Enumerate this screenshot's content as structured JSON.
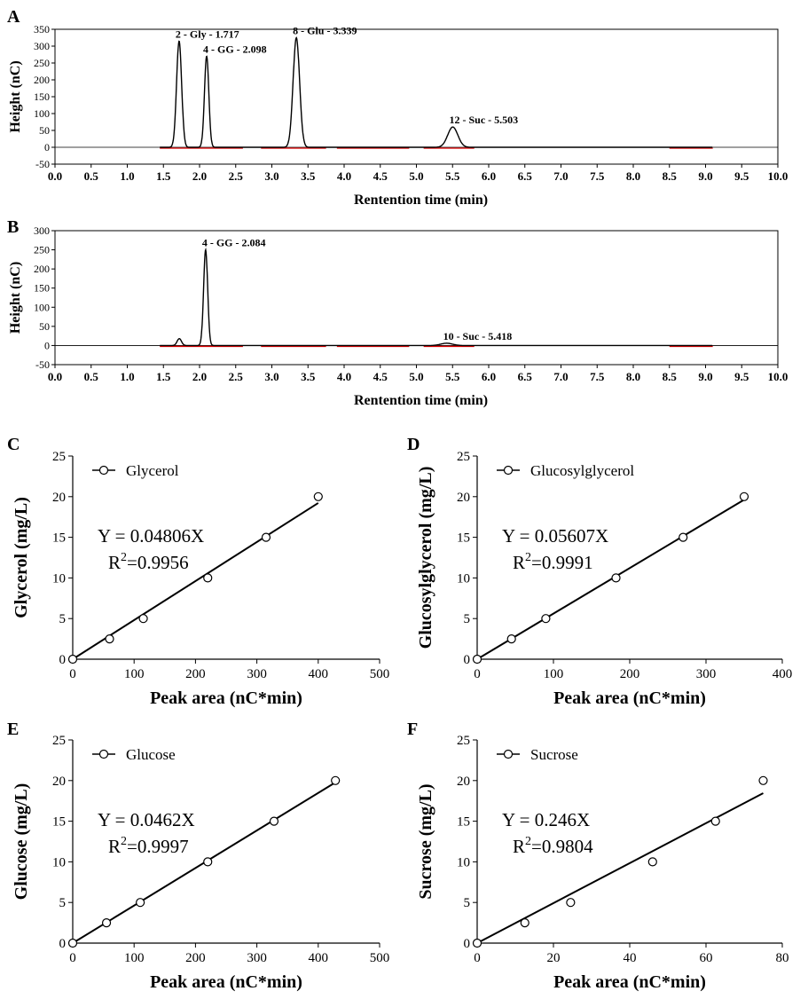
{
  "chart_data": [
    {
      "panel": "A",
      "type": "line",
      "xlabel": "Rentention time (min)",
      "ylabel": "Height (nC)",
      "xlim": [
        0,
        10
      ],
      "ylim": [
        -50,
        350
      ],
      "xticks": [
        "0.0",
        "0.5",
        "1.0",
        "1.5",
        "2.0",
        "2.5",
        "3.0",
        "3.5",
        "4.0",
        "4.5",
        "5.0",
        "5.5",
        "6.0",
        "6.5",
        "7.0",
        "7.5",
        "8.0",
        "8.5",
        "9.0",
        "9.5",
        "10.0"
      ],
      "yticks": [
        "-50",
        "0",
        "50",
        "100",
        "150",
        "200",
        "250",
        "300",
        "350"
      ],
      "peaks": [
        {
          "label": "2 - Gly - 1.717",
          "rt": 1.717,
          "height": 315,
          "sigma": 0.035
        },
        {
          "label": "4 - GG - 2.098",
          "rt": 2.098,
          "height": 270,
          "sigma": 0.03
        },
        {
          "label": "8 - Glu - 3.339",
          "rt": 3.339,
          "height": 325,
          "sigma": 0.045
        },
        {
          "label": "12 - Suc - 5.503",
          "rt": 5.503,
          "height": 60,
          "sigma": 0.07
        }
      ]
    },
    {
      "panel": "B",
      "type": "line",
      "xlabel": "Rentention time (min)",
      "ylabel": "Height (nC)",
      "xlim": [
        0,
        10
      ],
      "ylim": [
        -50,
        300
      ],
      "xticks": [
        "0.0",
        "0.5",
        "1.0",
        "1.5",
        "2.0",
        "2.5",
        "3.0",
        "3.5",
        "4.0",
        "4.5",
        "5.0",
        "5.5",
        "6.0",
        "6.5",
        "7.0",
        "7.5",
        "8.0",
        "8.5",
        "9.0",
        "9.5",
        "10.0"
      ],
      "yticks": [
        "-50",
        "0",
        "50",
        "100",
        "150",
        "200",
        "250",
        "300"
      ],
      "peaks": [
        {
          "label": "",
          "rt": 1.72,
          "height": 18,
          "sigma": 0.03
        },
        {
          "label": "4 - GG - 2.084",
          "rt": 2.084,
          "height": 250,
          "sigma": 0.028
        },
        {
          "label": "10 - Suc - 5.418",
          "rt": 5.418,
          "height": 6,
          "sigma": 0.08
        }
      ]
    },
    {
      "panel": "C",
      "type": "scatter",
      "legend": "Glycerol",
      "xlabel": "Peak area (nC*min)",
      "ylabel": "Glycerol (mg/L)",
      "xlim": [
        0,
        500
      ],
      "ylim": [
        0,
        25
      ],
      "xticks": [
        "0",
        "100",
        "200",
        "300",
        "400",
        "500"
      ],
      "yticks": [
        "0",
        "5",
        "10",
        "15",
        "20",
        "25"
      ],
      "x": [
        0,
        60,
        115,
        220,
        315,
        400
      ],
      "y": [
        0,
        2.5,
        5,
        10,
        15,
        20
      ],
      "slope": 0.04806,
      "equation": "Y = 0.04806X",
      "r2_prefix": "R",
      "r2_sup": "2",
      "r2_value": "=0.9956"
    },
    {
      "panel": "D",
      "type": "scatter",
      "legend": "Glucosylglycerol",
      "xlabel": "Peak area (nC*min)",
      "ylabel": "Glucosylglycerol (mg/L)",
      "xlim": [
        0,
        400
      ],
      "ylim": [
        0,
        25
      ],
      "xticks": [
        "0",
        "100",
        "200",
        "300",
        "400"
      ],
      "yticks": [
        "0",
        "5",
        "10",
        "15",
        "20",
        "25"
      ],
      "x": [
        0,
        45,
        90,
        182,
        270,
        350
      ],
      "y": [
        0,
        2.5,
        5,
        10,
        15,
        20
      ],
      "slope": 0.05607,
      "equation": "Y = 0.05607X",
      "r2_prefix": "R",
      "r2_sup": "2",
      "r2_value": "=0.9991"
    },
    {
      "panel": "E",
      "type": "scatter",
      "legend": "Glucose",
      "xlabel": "Peak area (nC*min)",
      "ylabel": "Glucose (mg/L)",
      "xlim": [
        0,
        500
      ],
      "ylim": [
        0,
        25
      ],
      "xticks": [
        "0",
        "100",
        "200",
        "300",
        "400",
        "500"
      ],
      "yticks": [
        "0",
        "5",
        "10",
        "15",
        "20",
        "25"
      ],
      "x": [
        0,
        55,
        110,
        220,
        328,
        428
      ],
      "y": [
        0,
        2.5,
        5,
        10,
        15,
        20
      ],
      "slope": 0.0462,
      "equation": "Y = 0.0462X",
      "r2_prefix": "R",
      "r2_sup": "2",
      "r2_value": "=0.9997"
    },
    {
      "panel": "F",
      "type": "scatter",
      "legend": "Sucrose",
      "xlabel": "Peak area (nC*min)",
      "ylabel": "Sucrose (mg/L)",
      "xlim": [
        0,
        80
      ],
      "ylim": [
        0,
        25
      ],
      "xticks": [
        "0",
        "20",
        "40",
        "60",
        "80"
      ],
      "yticks": [
        "0",
        "5",
        "10",
        "15",
        "20",
        "25"
      ],
      "x": [
        0,
        12.5,
        24.5,
        46,
        62.5,
        75
      ],
      "y": [
        0,
        2.5,
        5,
        10,
        15,
        20
      ],
      "slope": 0.246,
      "equation": "Y = 0.246X",
      "r2_prefix": "R",
      "r2_sup": "2",
      "r2_value": "=0.9804"
    }
  ]
}
